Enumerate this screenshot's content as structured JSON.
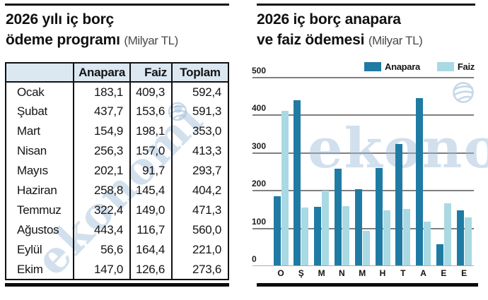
{
  "colors": {
    "anapara": "#1f7ba3",
    "faiz": "#a9d9e3",
    "table_header_bg": "#dbe8f2",
    "gridline": "#7f7f7f",
    "rule": "#111111",
    "watermark": "#9bbad6"
  },
  "watermark_text": "ekonomi",
  "left_panel": {
    "title_line1": "2026 yılı iç borç",
    "title_line2": "ödeme programı",
    "unit": "(Milyar TL)",
    "table": {
      "columns": [
        "",
        "Anapara",
        "Faiz",
        "Toplam"
      ],
      "rows": [
        [
          "Ocak",
          "183,1",
          "409,3",
          "592,4"
        ],
        [
          "Şubat",
          "437,7",
          "153,6",
          "591,3"
        ],
        [
          "Mart",
          "154,9",
          "198,1",
          "353,0"
        ],
        [
          "Nisan",
          "256,3",
          "157,0",
          "413,3"
        ],
        [
          "Mayıs",
          "202,1",
          "91,7",
          "293,7"
        ],
        [
          "Haziran",
          "258,8",
          "145,4",
          "404,2"
        ],
        [
          "Temmuz",
          "322,4",
          "149,0",
          "471,3"
        ],
        [
          "Ağustos",
          "443,4",
          "116,7",
          "560,0"
        ],
        [
          "Eylül",
          "56,6",
          "164,4",
          "221,0"
        ],
        [
          "Ekim",
          "147,0",
          "126,6",
          "273,6"
        ]
      ]
    }
  },
  "right_panel": {
    "title_line1": "2026 iç borç anapara",
    "title_line2": "ve faiz ödemesi",
    "unit": "(Milyar TL)"
  },
  "chart_data": {
    "type": "bar",
    "title": "2026 iç borç anapara ve faiz ödemesi (Milyar TL)",
    "categories": [
      "O",
      "Ş",
      "M",
      "N",
      "M",
      "H",
      "T",
      "A",
      "E",
      "E"
    ],
    "series": [
      {
        "name": "Anapara",
        "color": "#1f7ba3",
        "values": [
          183.1,
          437.7,
          154.9,
          256.3,
          202.1,
          258.8,
          322.4,
          443.4,
          56.6,
          147.0
        ]
      },
      {
        "name": "Faiz",
        "color": "#a9d9e3",
        "values": [
          409.3,
          153.6,
          198.1,
          157.0,
          91.7,
          145.4,
          149.0,
          116.7,
          164.4,
          126.6
        ]
      }
    ],
    "ylim": [
      0,
      500
    ],
    "yticks": [
      0,
      100,
      200,
      300,
      400,
      500
    ],
    "grid": true,
    "legend_position": "top-right"
  }
}
